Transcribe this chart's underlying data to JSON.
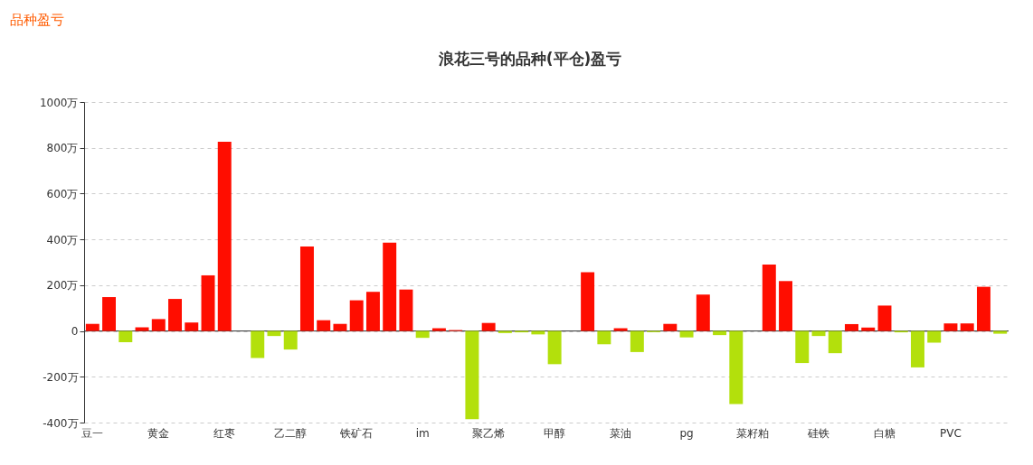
{
  "chart_data": {
    "type": "bar",
    "title": "浪花三号的品种(平仓)盈亏",
    "annotations": [
      "品种盈亏"
    ],
    "categories": [
      "豆一",
      null,
      null,
      null,
      "黄金",
      null,
      null,
      null,
      "红枣",
      null,
      null,
      null,
      "乙二醇",
      null,
      null,
      null,
      "铁矿石",
      null,
      null,
      null,
      "im",
      null,
      null,
      null,
      "聚乙烯",
      null,
      null,
      null,
      "甲醇",
      null,
      null,
      null,
      "菜油",
      null,
      null,
      null,
      "pg",
      null,
      null,
      null,
      "菜籽粕",
      null,
      null,
      null,
      "硅铁",
      null,
      null,
      null,
      "白糖",
      null,
      null,
      null,
      "PVC",
      null,
      null,
      null
    ],
    "values": [
      31,
      148,
      -49,
      16,
      52,
      140,
      37,
      243,
      826,
      null,
      -118,
      -22,
      -81,
      369,
      47,
      31,
      134,
      171,
      386,
      181,
      -30,
      12,
      4,
      -385,
      35,
      -9,
      -6,
      -15,
      -145,
      0,
      257,
      -58,
      12,
      -92,
      -5,
      31,
      -28,
      159,
      -18,
      -319,
      null,
      290,
      218,
      -140,
      -22,
      -97,
      30,
      15,
      111,
      -6,
      -159,
      -51,
      33,
      33,
      193,
      -12
    ],
    "colors": [
      "#ff0d00",
      "#ff0d00",
      "#b3e00c",
      "#ff0d00",
      "#ff0d00",
      "#ff0d00",
      "#ff0d00",
      "#ff0d00",
      "#ff0d00",
      "#ff0d00",
      "#b3e00c",
      "#b3e00c",
      "#b3e00c",
      "#ff0d00",
      "#ff0d00",
      "#ff0d00",
      "#ff0d00",
      "#ff0d00",
      "#ff0d00",
      "#ff0d00",
      "#b3e00c",
      "#ff0d00",
      "#ff0d00",
      "#b3e00c",
      "#ff0d00",
      "#b3e00c",
      "#b3e00c",
      "#b3e00c",
      "#b3e00c",
      "#ff0d00",
      "#ff0d00",
      "#b3e00c",
      "#ff0d00",
      "#b3e00c",
      "#b3e00c",
      "#ff0d00",
      "#b3e00c",
      "#ff0d00",
      "#b3e00c",
      "#b3e00c",
      "#b3e00c",
      "#ff0d00",
      "#ff0d00",
      "#b3e00c",
      "#b3e00c",
      "#b3e00c",
      "#ff0d00",
      "#ff0d00",
      "#ff0d00",
      "#b3e00c",
      "#b3e00c",
      "#b3e00c",
      "#ff0d00",
      "#ff0d00",
      "#ff0d00",
      "#b3e00c"
    ],
    "ylim": [
      -400,
      1000
    ],
    "yticks": [
      {
        "value": -400,
        "label": "-400万"
      },
      {
        "value": -200,
        "label": "-200万"
      },
      {
        "value": 0,
        "label": "0"
      },
      {
        "value": 200,
        "label": "200万"
      },
      {
        "value": 400,
        "label": "400万"
      },
      {
        "value": 600,
        "label": "600万"
      },
      {
        "value": 800,
        "label": "800万"
      },
      {
        "value": 1000,
        "label": "1000万"
      }
    ],
    "grid": "y"
  }
}
